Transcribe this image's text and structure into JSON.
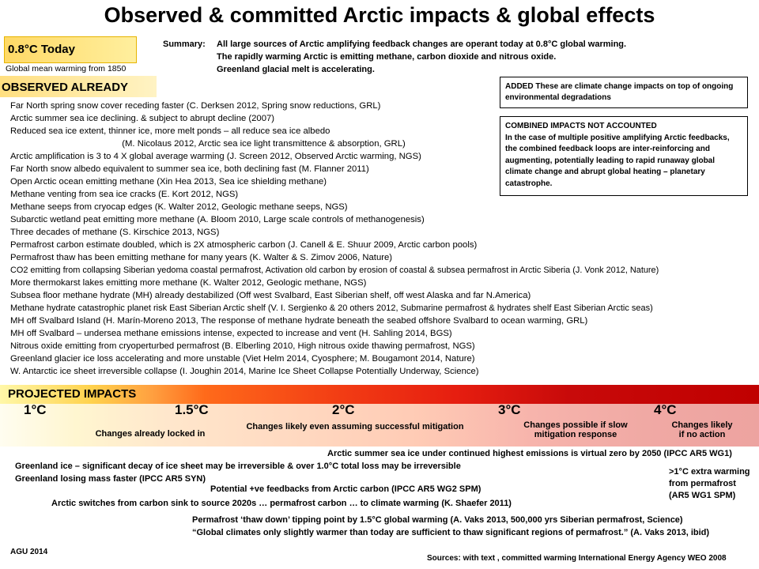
{
  "title": "Observed & committed Arctic impacts & global effects",
  "today": {
    "label": "0.8°C Today",
    "sub": "Global mean warming from 1850"
  },
  "summary": {
    "label": "Summary:",
    "lines": [
      "All large sources of Arctic amplifying feedback changes are operant today at 0.8°C global warming.",
      "The rapidly warming Arctic is emitting methane, carbon dioxide and nitrous oxide.",
      "Greenland glacial  melt is accelerating."
    ]
  },
  "observed": {
    "title": "OBSERVED ALREADY",
    "items": [
      "Far North spring snow cover receding faster  (C. Derksen 2012, Spring snow reductions, GRL)",
      "Arctic summer sea ice declining. & subject to abrupt decline (2007)",
      "Reduced sea ice extent,  thinner ice, more melt ponds – all reduce  sea ice albedo",
      "                                             (M. Nicolaus 2012, Arctic sea ice light transmittence & absorption, GRL)",
      "Arctic amplification is 3 to 4 X global average warming (J. Screen 2012, Observed Arctic warming, NGS)",
      "Far North  snow albedo equivalent to summer sea ice, both declining fast (M. Flanner 2011)",
      "Open Arctic ocean emitting  methane   (Xin Hea 2013, Sea ice shielding methane)",
      "Methane venting from sea ice cracks (E. Kort 2012, NGS)",
      "Methane seeps from cryocap edges  (K. Walter 2012, Geologic methane seeps, NGS)",
      "Subarctic wetland peat emitting more methane  (A. Bloom 2010, Large scale controls of methanogenesis)",
      "Three decades of methane  (S. Kirschice 2013, NGS)",
      "Permafrost carbon estimate doubled, which is 2X atmospheric carbon (J. Canell & E. Shuur 2009, Arctic carbon pools)",
      "Permafrost thaw has been emitting methane  for many years  (K. Walter & S. Zimov 2006, Nature)",
      "CO2 emitting from collapsing Siberian yedoma coastal  permafrost,  Activation  old carbon by erosion of coastal & subsea permafrost in Arctic Siberia (J. Vonk 2012, Nature)",
      "More thermokarst lakes emitting more methane (K. Walter 2012, Geologic methane,  NGS)",
      "Subsea floor methane  hydrate (MH) already destabilized (Off  west Svalbard, East Siberian shelf, off west Alaska and far N.America)",
      "Methane hydrate  catastrophic planet risk East Siberian Arctic shelf (V. I. Sergienko & 20 others 2012, Submarine permafrost & hydrates shelf East Siberian Arctic seas)",
      "MH off Svalbard Island  (H. Marín-Moreno 2013, The response of methane hydrate beneath  the seabed offshore Svalbard to ocean warming, GRL)",
      "MH off Svalbard – undersea methane  emissions intense, expected to increase and vent (H. Sahling 2014, BGS)",
      "Nitrous oxide emitting from cryoperturbed permafrost (B. Elberling 2010, High nitrous oxide thawing permafrost, NGS)",
      "Greenland glacier ice loss accelerating and more unstable (Viet Helm 2014, Cyosphere;  M. Bougamont 2014, Nature)",
      "W. Antarctic ice sheet irreversible collapse (I. Joughin 2014, Marine Ice Sheet  Collapse Potentially Underway, Science)"
    ]
  },
  "added_note": "ADDED These are climate change impacts on top of ongoing environmental degradations",
  "combined_note": {
    "heading": "COMBINED IMPACTS NOT ACCOUNTED",
    "body": "In the case of multiple positive amplifying Arctic feedbacks, the combined feedback loops are inter-reinforcing and augmenting, potentially leading to rapid runaway global climate change and abrupt global heating – planetary catastrophe."
  },
  "projected": {
    "title": "PROJECTED IMPACTS",
    "temps": [
      "1°C",
      "1.5°C",
      "2°C",
      "3°C",
      "4°C"
    ],
    "descs": [
      "Changes already locked in",
      "Changes likely even assuming successful  mitigation",
      "Changes possible  if slow mitigation response",
      "Changes likely if  no action"
    ]
  },
  "impacts": {
    "sea_ice": "Arctic summer sea ice under continued highest emissions is virtual zero by 2050 (IPCC AR5 WG1)",
    "greenland_1": "Greenland ice – significant  decay of ice sheet may be irreversible & over 1.0°C total loss may be irreversible",
    "greenland_2": "Greenland losing mass faster  (IPCC AR5 SYN)",
    "extra_warming": ">1°C extra warming from permafrost (AR5 WG1 SPM)",
    "feedbacks": "Potential +ve feedbacks from Arctic carbon (IPCC AR5 WG2 SPM)",
    "sink_to_source": "Arctic switches from carbon sink to source 2020s … permafrost carbon … to climate warming (K. Shaefer 2011)",
    "thaw_down_1": "Permafrost ‘thaw down’ tipping point by 1.5°C global warming (A. Vaks 2013, 500,000 yrs Siberian permafrost, Science)",
    "thaw_down_2": "“Global climates only slightly warmer than today are sufficient  to thaw significant  regions of permafrost.” (A. Vaks 2013, ibid)"
  },
  "footer": {
    "left": "AGU 2014",
    "right": "Sources: with text , committed warming International  Energy Agency WEO 2008"
  }
}
